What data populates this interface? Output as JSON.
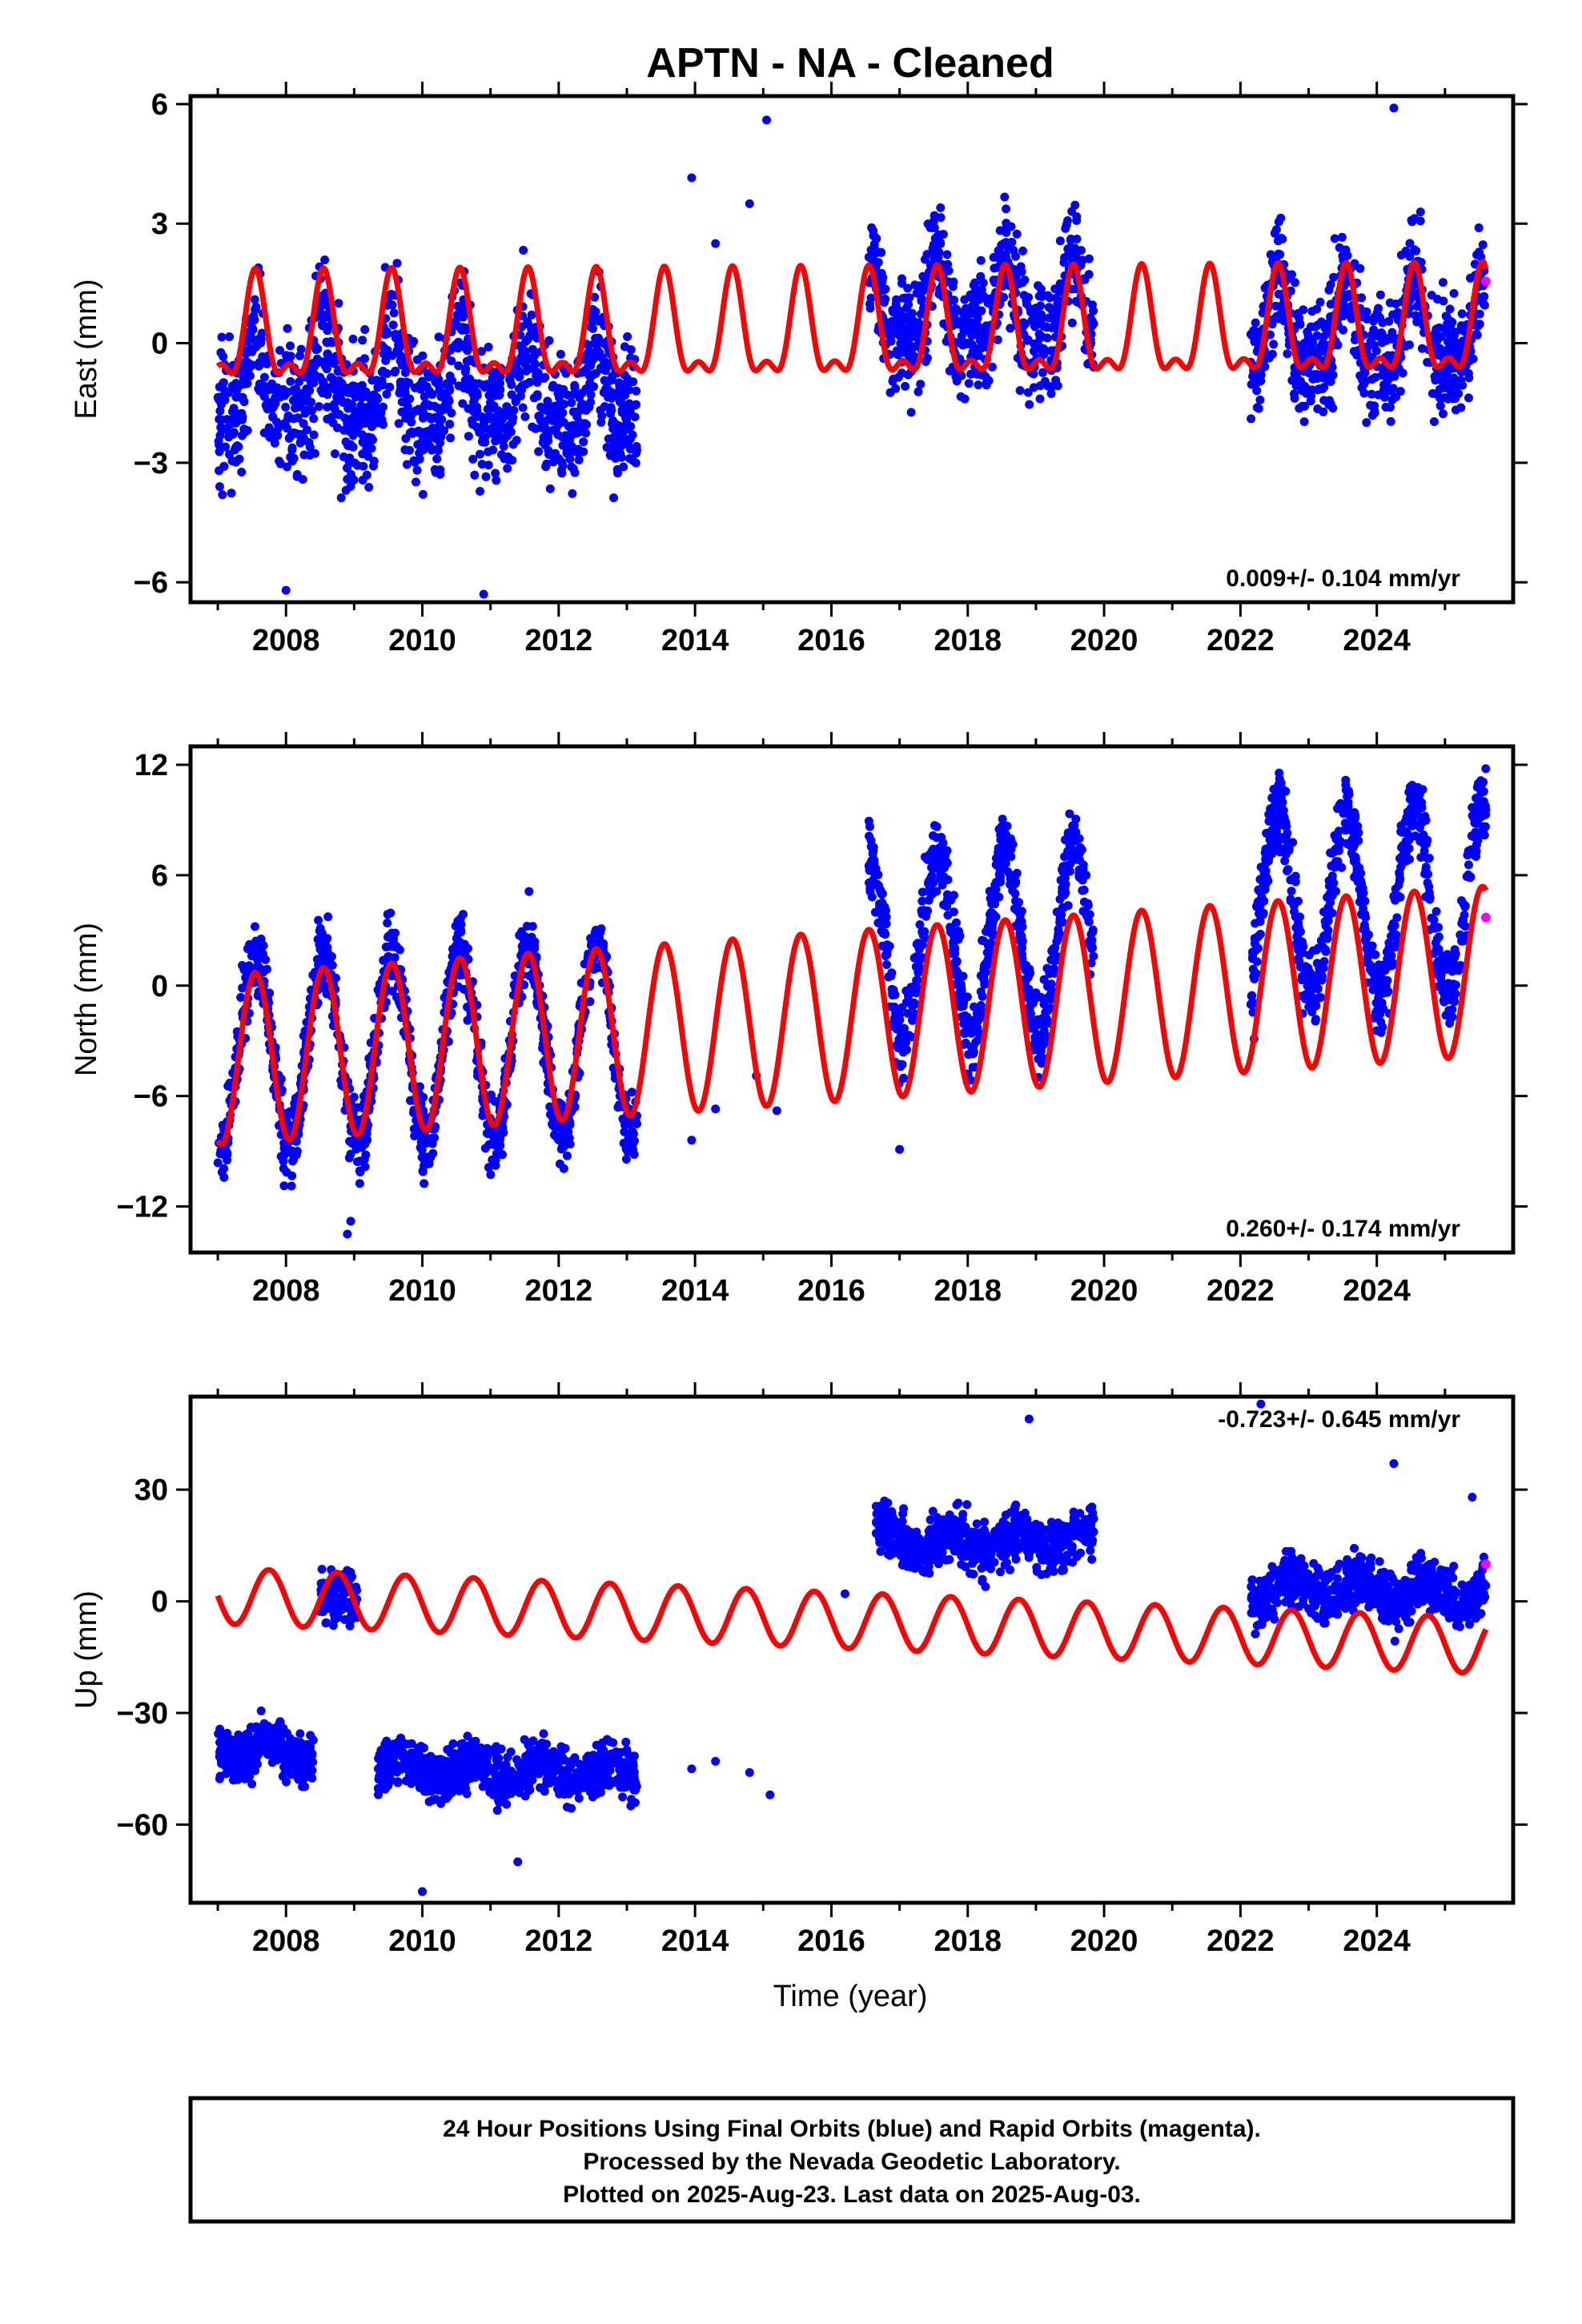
{
  "title": "APTN  - NA - Cleaned",
  "xlabel": "Time (year)",
  "footer": [
    "24 Hour Positions Using Final Orbits (blue) and Rapid Orbits (magenta).",
    "Processed by the Nevada Geodetic Laboratory.",
    "Plotted on 2025-Aug-23. Last data on 2025-Aug-03."
  ],
  "colors": {
    "final_orbits": "#0000ff",
    "rapid_orbits": "#ff00ff",
    "model": "#ff0000",
    "axes": "#000000"
  },
  "chart_data": [
    {
      "type": "scatter",
      "panel": "east",
      "ylabel": "East (mm)",
      "rate_text": "0.009+/- 0.104 mm/yr",
      "xlim": [
        2006.6,
        2026.0
      ],
      "ylim": [
        -6.5,
        6.2
      ],
      "xticks": [
        2008,
        2010,
        2012,
        2014,
        2016,
        2018,
        2020,
        2022,
        2024
      ],
      "yticks": [
        -6,
        -3,
        0,
        3,
        6
      ],
      "ytick_labels": [
        "−6",
        "−3",
        "0",
        "3",
        "6"
      ],
      "data_segments": [
        {
          "start": 2007.0,
          "end": 2013.15,
          "offset": -1.2,
          "scatter": 1.2,
          "amp": 1.0
        },
        {
          "start": 2016.55,
          "end": 2019.85,
          "offset": 0.8,
          "scatter": 1.0,
          "amp": 1.0
        },
        {
          "start": 2022.15,
          "end": 2025.6,
          "offset": 0.2,
          "scatter": 1.0,
          "amp": 1.0
        }
      ],
      "model": {
        "intercept": 0.2,
        "slope": 0.009,
        "annual_amp": 1.2,
        "annual_phase_peak": 0.55,
        "semiannual_amp": 0.55
      },
      "outliers": [
        [
          2013.95,
          4.15
        ],
        [
          2014.3,
          2.5
        ],
        [
          2015.05,
          5.6
        ],
        [
          2014.8,
          3.5
        ],
        [
          2024.25,
          5.9
        ],
        [
          2010.9,
          -6.3
        ],
        [
          2008.0,
          -6.2
        ]
      ],
      "rapid_points": [
        [
          2025.6,
          1.55
        ]
      ]
    },
    {
      "type": "scatter",
      "panel": "north",
      "ylabel": "North (mm)",
      "rate_text": "0.260+/- 0.174 mm/yr",
      "xlim": [
        2006.6,
        2026.0
      ],
      "ylim": [
        -14.5,
        13.0
      ],
      "xticks": [
        2008,
        2010,
        2012,
        2014,
        2016,
        2018,
        2020,
        2022,
        2024
      ],
      "yticks": [
        -12,
        -6,
        0,
        6,
        12
      ],
      "ytick_labels": [
        "−12",
        "−6",
        "0",
        "6",
        "12"
      ],
      "data_segments": [
        {
          "start": 2007.0,
          "end": 2013.15,
          "offset": -2.5,
          "scatter": 1.4,
          "amp": 5.2
        },
        {
          "start": 2016.55,
          "end": 2019.85,
          "offset": 2.0,
          "scatter": 1.5,
          "amp": 5.0
        },
        {
          "start": 2022.15,
          "end": 2025.6,
          "offset": 3.5,
          "scatter": 1.5,
          "amp": 5.0
        }
      ],
      "model": {
        "intercept": -1.7,
        "slope": 0.26,
        "annual_amp": 4.6,
        "annual_phase_peak": 0.55,
        "semiannual_amp": 0.0
      },
      "outliers": [
        [
          2013.95,
          -8.4
        ],
        [
          2014.3,
          -6.7
        ],
        [
          2014.9,
          -4.9
        ],
        [
          2015.2,
          -6.8
        ],
        [
          2017.0,
          -8.9
        ],
        [
          2008.9,
          -13.5
        ],
        [
          2008.95,
          -12.8
        ],
        [
          2022.2,
          -2.9
        ]
      ],
      "rapid_points": [
        [
          2025.6,
          3.7
        ]
      ]
    },
    {
      "type": "scatter",
      "panel": "up",
      "ylabel": "Up (mm)",
      "rate_text": "-0.723+/- 0.645 mm/yr",
      "xlim": [
        2006.6,
        2026.0
      ],
      "ylim": [
        -81,
        55
      ],
      "xticks": [
        2008,
        2010,
        2012,
        2014,
        2016,
        2018,
        2020,
        2022,
        2024
      ],
      "yticks": [
        -60,
        -30,
        0,
        30
      ],
      "ytick_labels": [
        "−60",
        "−30",
        "0",
        "30"
      ],
      "data_segments": [
        {
          "start": 2007.0,
          "end": 2008.4,
          "offset": -43,
          "scatter": 4.5,
          "amp": 2.5
        },
        {
          "start": 2008.5,
          "end": 2009.05,
          "offset": -3,
          "scatter": 5.5,
          "amp": 2.5
        },
        {
          "start": 2009.35,
          "end": 2013.15,
          "offset": -47,
          "scatter": 5.0,
          "amp": 2.5
        },
        {
          "start": 2016.65,
          "end": 2019.85,
          "offset": 17,
          "scatter": 5.0,
          "amp": 3.0
        },
        {
          "start": 2022.15,
          "end": 2025.6,
          "offset": 6,
          "scatter": 5.0,
          "amp": 3.0
        }
      ],
      "model": {
        "intercept": -5.0,
        "slope": -0.723,
        "annual_amp": 7.5,
        "annual_phase_peak": 0.75,
        "semiannual_amp": 0.0
      },
      "outliers": [
        [
          2013.95,
          -45
        ],
        [
          2014.3,
          -43
        ],
        [
          2014.8,
          -46
        ],
        [
          2015.1,
          -52
        ],
        [
          2016.2,
          2
        ],
        [
          2018.9,
          49
        ],
        [
          2022.3,
          53
        ],
        [
          2024.25,
          37
        ],
        [
          2010.0,
          -78
        ],
        [
          2011.4,
          -70
        ],
        [
          2025.4,
          28
        ]
      ],
      "rapid_points": [
        [
          2025.6,
          10
        ]
      ]
    }
  ]
}
